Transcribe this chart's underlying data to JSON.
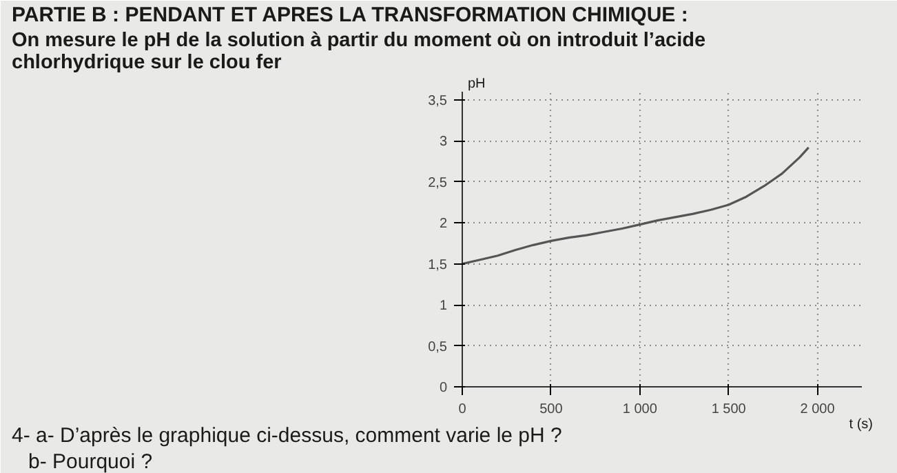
{
  "chart_data": {
    "type": "line",
    "title": "PARTIE B : PENDANT ET APRES LA TRANSFORMATION CHIMIQUE :",
    "subtitle": "On mesure le pH de la solution à partir du moment où on introduit l’acide chlorhydrique sur le clou fer",
    "xlabel": "t (s)",
    "ylabel": "pH",
    "x": [
      0,
      100,
      200,
      300,
      400,
      500,
      600,
      700,
      800,
      900,
      1000,
      1100,
      1200,
      1300,
      1400,
      1500,
      1600,
      1700,
      1800,
      1900,
      1950
    ],
    "series": [
      {
        "color": "#555555",
        "values": [
          1.5,
          1.55,
          1.6,
          1.67,
          1.73,
          1.78,
          1.82,
          1.85,
          1.89,
          1.93,
          1.98,
          2.03,
          2.07,
          2.11,
          2.16,
          2.22,
          2.32,
          2.45,
          2.6,
          2.8,
          2.92
        ]
      }
    ],
    "xlim": [
      0,
      2250
    ],
    "ylim": [
      0,
      3.6
    ],
    "xticks": [
      0,
      500,
      {
        "value": 1000,
        "label": "1 000"
      },
      {
        "value": 1500,
        "label": "1 500"
      },
      {
        "value": 2000,
        "label": "2 000"
      }
    ],
    "yticks": [
      0,
      {
        "value": 0.5,
        "label": "0,5"
      },
      1,
      {
        "value": 1.5,
        "label": "1,5"
      },
      2,
      {
        "value": 2.5,
        "label": "2,5"
      },
      3,
      {
        "value": 3.5,
        "label": "3,5"
      }
    ],
    "grid": true,
    "line_style": "solid",
    "marker": "none",
    "annotations": [
      "4- a- D’après le graphique ci-dessus, comment varie le pH ?",
      "b- Pourquoi ?"
    ]
  }
}
